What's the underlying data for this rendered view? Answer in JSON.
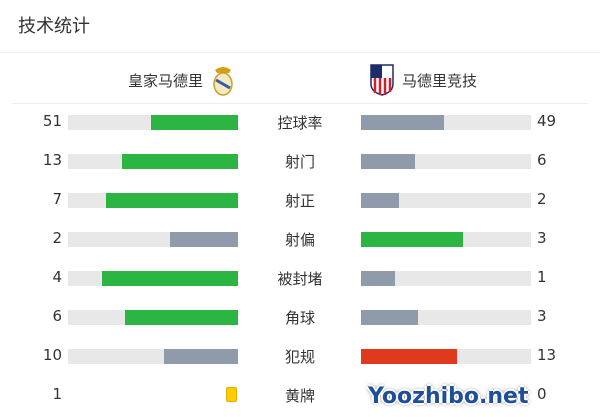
{
  "title": "技术统计",
  "home": {
    "name": "皇家马德里",
    "logo": "real-madrid-crest"
  },
  "away": {
    "name": "马德里竞技",
    "logo": "atletico-madrid-crest"
  },
  "colors": {
    "leader": "#2db543",
    "trailer": "#8f9aab",
    "fouls_leader": "#e03a1e",
    "track": "#e8e8e8",
    "yellow": "#ffcc00"
  },
  "stats": [
    {
      "label": "控球率",
      "home": "51",
      "away": "49"
    },
    {
      "label": "射门",
      "home": "13",
      "away": "6"
    },
    {
      "label": "射正",
      "home": "7",
      "away": "2"
    },
    {
      "label": "射偏",
      "home": "2",
      "away": "3"
    },
    {
      "label": "被封堵",
      "home": "4",
      "away": "1"
    },
    {
      "label": "角球",
      "home": "6",
      "away": "3"
    },
    {
      "label": "犯规",
      "home": "10",
      "away": "13"
    },
    {
      "label": "黄牌",
      "home": "1",
      "away": "0"
    }
  ],
  "watermark": "Yoozhibo.net"
}
